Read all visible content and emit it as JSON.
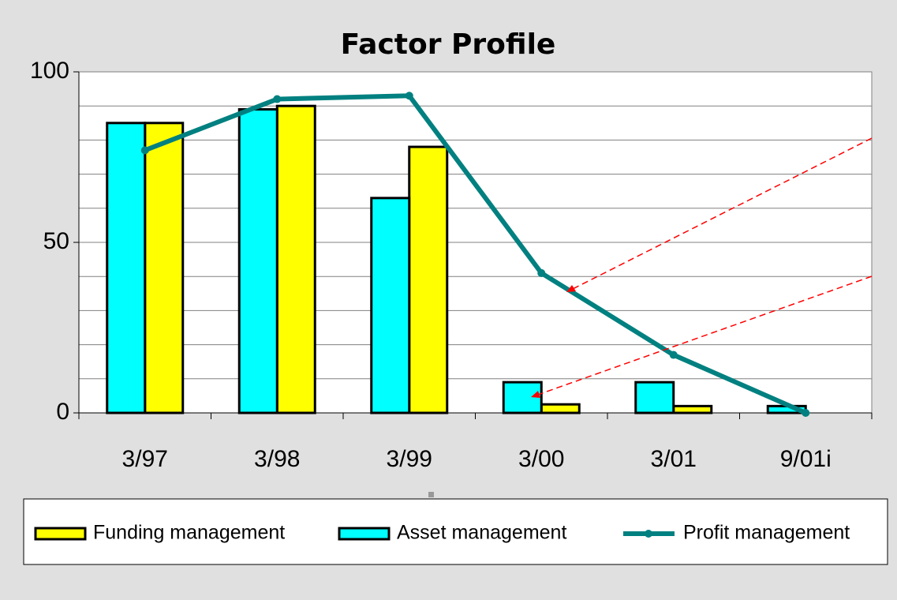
{
  "chart_data": {
    "type": "bar",
    "title": "Factor Profile",
    "categories": [
      "3/97",
      "3/98",
      "3/99",
      "3/00",
      "3/01",
      "9/01i"
    ],
    "series": [
      {
        "name": "Funding management",
        "type": "bar",
        "color": "#ffff00",
        "values": [
          85,
          90,
          78,
          2.5,
          2,
          0
        ]
      },
      {
        "name": "Asset management",
        "type": "bar",
        "color": "#00ffff",
        "values": [
          85,
          89,
          63,
          9,
          9,
          2
        ]
      },
      {
        "name": "Profit management",
        "type": "line",
        "color": "#008080",
        "values": [
          77,
          92,
          93,
          41,
          17,
          0
        ]
      }
    ],
    "ylim": [
      0,
      100
    ],
    "yticks": [
      0,
      50,
      100
    ],
    "grid": true,
    "legend": "bottom"
  }
}
